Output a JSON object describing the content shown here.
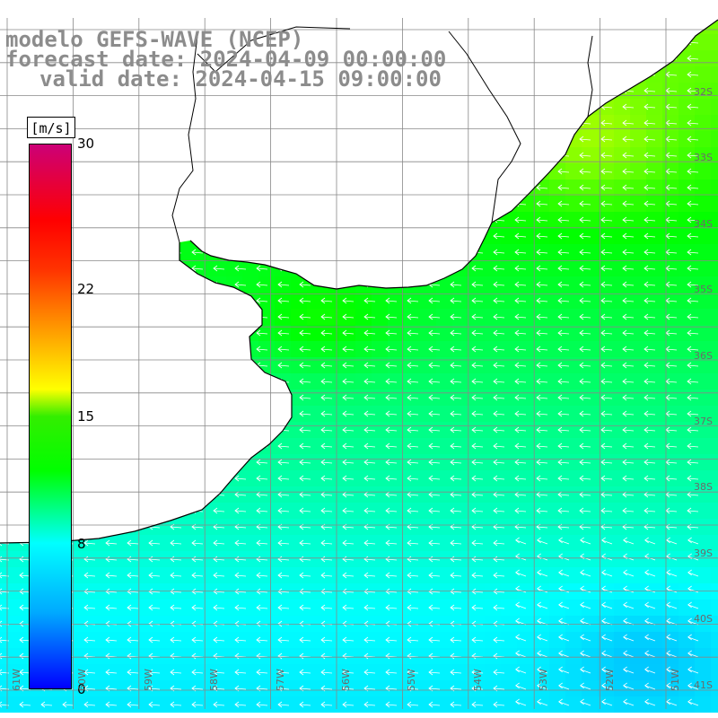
{
  "title": {
    "line1": "modelo GEFS-WAVE (NCEP)",
    "line2": "forecast date: 2024-04-09 00:00:00",
    "line3": "valid date: 2024-04-15 09:00:00"
  },
  "colorbar": {
    "unit": "[m/s]",
    "min": 0,
    "max": 30,
    "ticks": [
      {
        "value": 30,
        "label": "30"
      },
      {
        "value": 22,
        "label": "22"
      },
      {
        "value": 15,
        "label": "15"
      },
      {
        "value": 8,
        "label": "8"
      },
      {
        "value": 0,
        "label": "0"
      }
    ],
    "colors": [
      "#0000ff",
      "#00aaff",
      "#00ffff",
      "#00ff00",
      "#ffff00",
      "#ff8800",
      "#ff0000",
      "#cc0077"
    ]
  },
  "map": {
    "land_color": "#ffffff",
    "grid_color": "#888888",
    "coastline_color": "#000000",
    "arrow_color": "#ffffff",
    "lat_labels": [
      "32S",
      "33S",
      "34S",
      "35S",
      "36S",
      "37S",
      "38S",
      "39S",
      "40S",
      "41S"
    ],
    "lon_labels": [
      "61W",
      "60W",
      "59W",
      "58W",
      "57W",
      "56W",
      "55W",
      "54W",
      "53W",
      "52W",
      "51W"
    ]
  }
}
